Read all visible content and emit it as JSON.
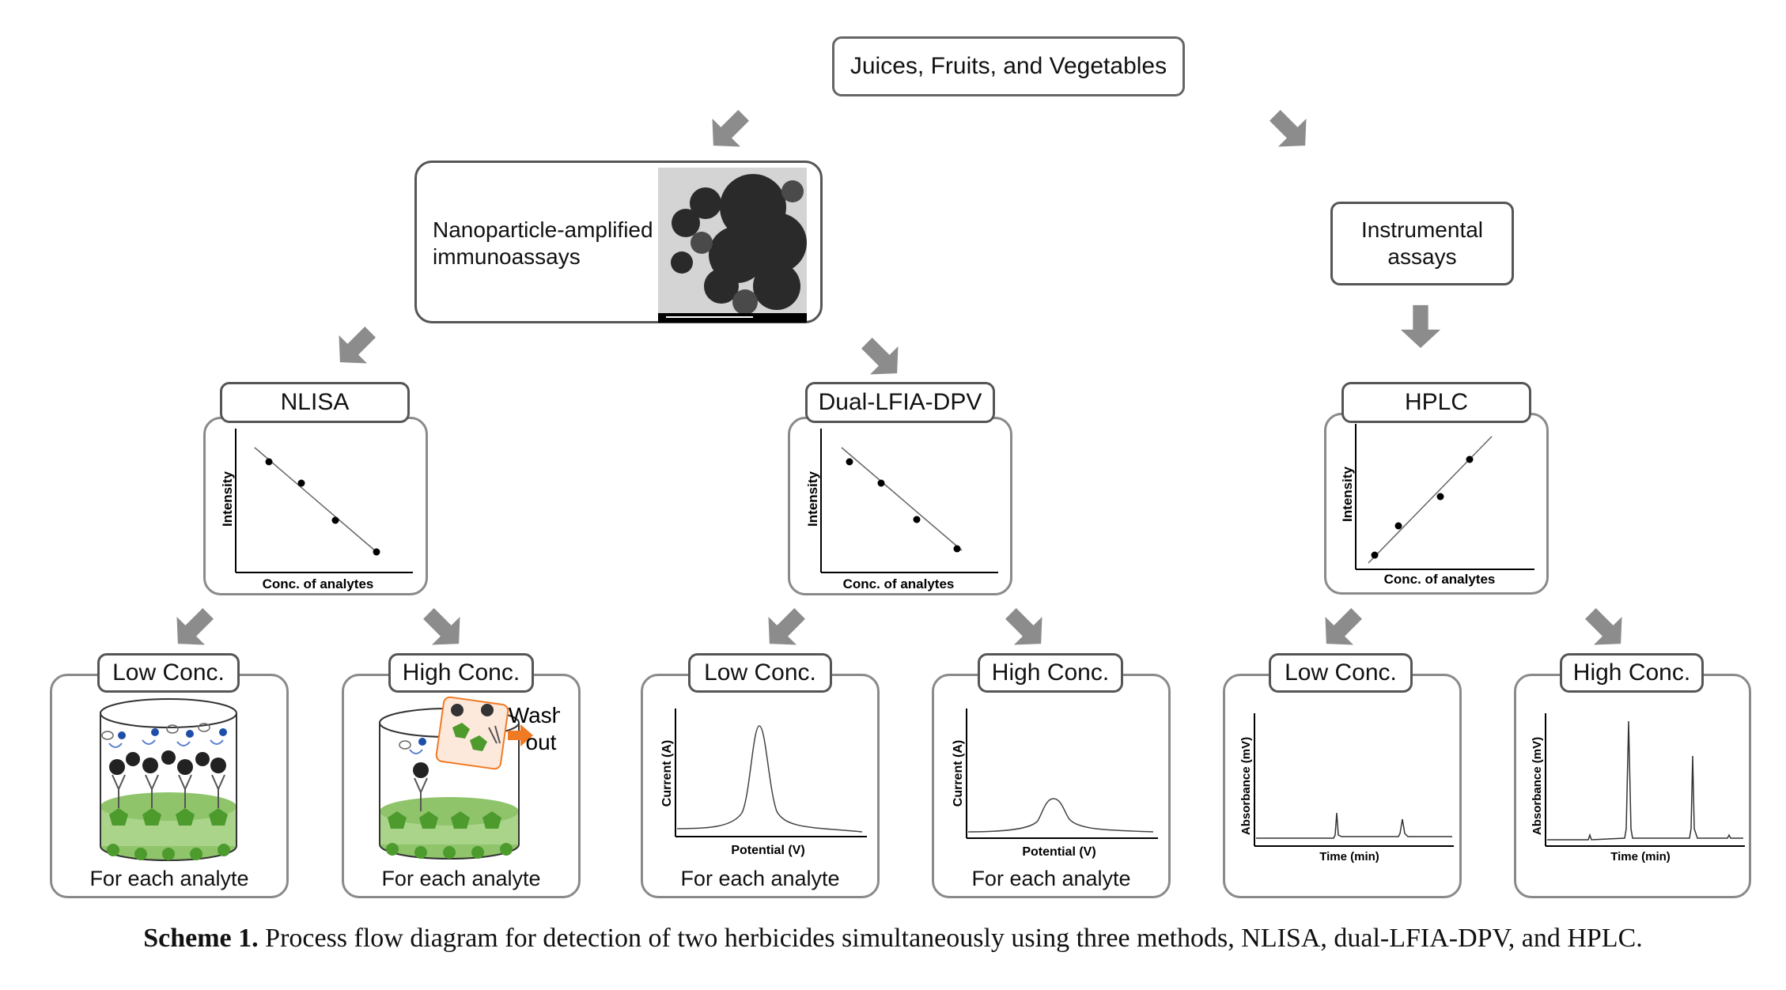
{
  "top": {
    "label": "Juices, Fruits, and Vegetables"
  },
  "nano": {
    "label_line1": "Nanoparticle-amplified",
    "label_line2": "immunoassays"
  },
  "instrumental": {
    "label_line1": "Instrumental",
    "label_line2": "assays"
  },
  "methods": [
    {
      "label": "NLISA",
      "xlabel": "Conc. of analytes",
      "ylabel": "Intensity"
    },
    {
      "label": "Dual-LFIA-DPV",
      "xlabel": "Conc. of analytes",
      "ylabel": "Intensity"
    },
    {
      "label": "HPLC",
      "xlabel": "Conc. of analytes",
      "ylabel": "Intensity"
    }
  ],
  "panels": [
    {
      "label": "Low Conc.",
      "footer": "For each analyte"
    },
    {
      "label": "High Conc.",
      "footer": "For each analyte",
      "wash_line1": "Wash",
      "wash_line2": "out"
    },
    {
      "label": "Low Conc.",
      "footer": "For each analyte",
      "xlabel": "Potential (V)",
      "ylabel": "Current (A)"
    },
    {
      "label": "High Conc.",
      "footer": "For each analyte",
      "xlabel": "Potential (V)",
      "ylabel": "Current (A)"
    },
    {
      "label": "Low Conc.",
      "xlabel": "Time (min)",
      "ylabel": "Absorbance (mV)"
    },
    {
      "label": "High Conc.",
      "xlabel": "Time (min)",
      "ylabel": "Absorbance (mV)"
    }
  ],
  "caption": {
    "prefix": "Scheme 1.",
    "text": "Process flow diagram for detection of two herbicides simultaneously using three methods, NLISA, dual-LFIA-DPV, and HPLC."
  },
  "colors": {
    "border": "#8a8a8a",
    "arrow": "#8c8c8c",
    "green": "#5c9e3a",
    "wash_arrow": "#f07a23"
  }
}
